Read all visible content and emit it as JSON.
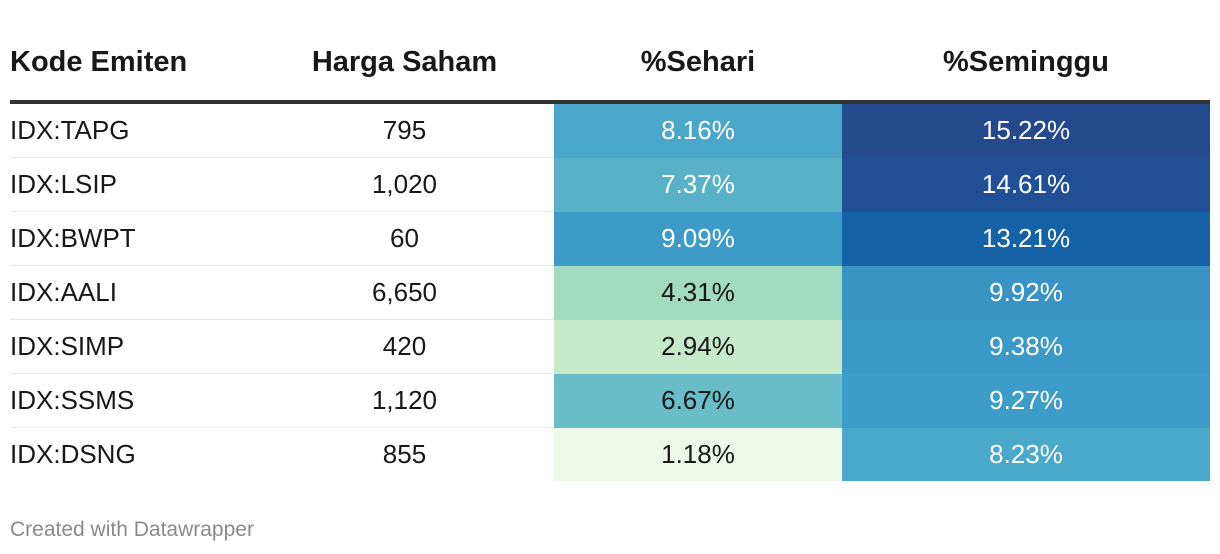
{
  "chart_data": {
    "type": "table",
    "columns": [
      "Kode Emiten",
      "Harga Saham",
      "%Sehari",
      "%Seminggu"
    ],
    "rows": [
      {
        "code": "IDX:TAPG",
        "price": "795",
        "day": "8.16%",
        "week": "15.22%",
        "day_value": 8.16,
        "week_value": 15.22,
        "day_bg": "#4aa7c9",
        "week_bg": "#24498c",
        "day_fg": "#ffffff",
        "week_fg": "#ffffff"
      },
      {
        "code": "IDX:LSIP",
        "price": "1,020",
        "day": "7.37%",
        "week": "14.61%",
        "day_value": 7.37,
        "week_value": 14.61,
        "day_bg": "#58b1c7",
        "week_bg": "#214f95",
        "day_fg": "#ffffff",
        "week_fg": "#ffffff"
      },
      {
        "code": "IDX:BWPT",
        "price": "60",
        "day": "9.09%",
        "week": "13.21%",
        "day_value": 9.09,
        "week_value": 13.21,
        "day_bg": "#3e9bc7",
        "week_bg": "#1563a6",
        "day_fg": "#ffffff",
        "week_fg": "#ffffff"
      },
      {
        "code": "IDX:AALI",
        "price": "6,650",
        "day": "4.31%",
        "week": "9.92%",
        "day_value": 4.31,
        "week_value": 9.92,
        "day_bg": "#a2dbbf",
        "week_bg": "#3993c5",
        "day_fg": "#181818",
        "week_fg": "#ffffff"
      },
      {
        "code": "IDX:SIMP",
        "price": "420",
        "day": "2.94%",
        "week": "9.38%",
        "day_value": 2.94,
        "week_value": 9.38,
        "day_bg": "#c5e9c9",
        "week_bg": "#3c99c7",
        "day_fg": "#181818",
        "week_fg": "#ffffff"
      },
      {
        "code": "IDX:SSMS",
        "price": "1,120",
        "day": "6.67%",
        "week": "9.27%",
        "day_value": 6.67,
        "week_value": 9.27,
        "day_bg": "#69bdc8",
        "week_bg": "#3d9cc8",
        "day_fg": "#181818",
        "week_fg": "#ffffff"
      },
      {
        "code": "IDX:DSNG",
        "price": "855",
        "day": "1.18%",
        "week": "8.23%",
        "day_value": 1.18,
        "week_value": 8.23,
        "day_bg": "#eef8e9",
        "week_bg": "#4aa8cb",
        "day_fg": "#181818",
        "week_fg": "#ffffff"
      }
    ]
  },
  "footer": "Created with Datawrapper"
}
